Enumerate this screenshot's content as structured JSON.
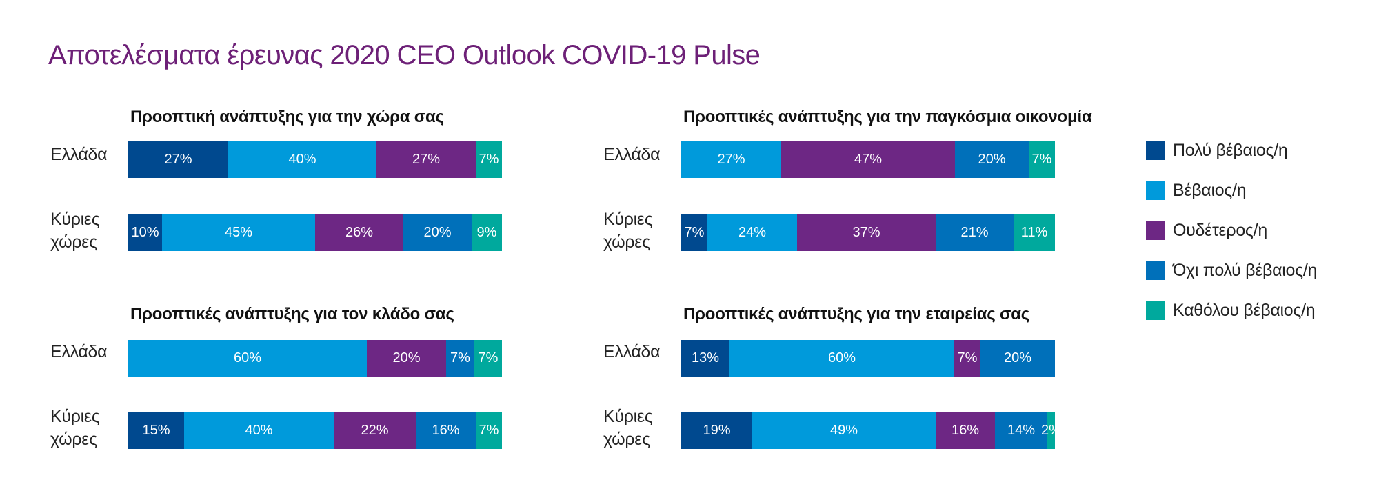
{
  "title": "Αποτελέσματα έρευνας 2020 CEO Outlook COVID-19 Pulse",
  "colors": {
    "very_confident": "#00498F",
    "confident": "#009ADB",
    "neutral": "#6D2784",
    "not_very_confident": "#0070BA",
    "not_at_all_confident": "#00A99D"
  },
  "legend": [
    {
      "key": "very_confident",
      "label": "Πολύ βέβαιος/η"
    },
    {
      "key": "confident",
      "label": "Βέβαιος/η"
    },
    {
      "key": "neutral",
      "label": "Ουδέτερος/η"
    },
    {
      "key": "not_very_confident",
      "label": "Όχι πολύ βέβαιος/η"
    },
    {
      "key": "not_at_all_confident",
      "label": "Καθόλου βέβαιος/η"
    }
  ],
  "chart_data": [
    {
      "type": "bar",
      "orientation": "horizontal-stacked",
      "title": "Προοπτική ανάπτυξης για την χώρα σας",
      "categories": [
        "Ελλάδα",
        "Κύριες\nχώρες"
      ],
      "unit": "%",
      "series": [
        {
          "name": "Πολύ βέβαιος/η",
          "key": "very_confident",
          "values": [
            27,
            10
          ]
        },
        {
          "name": "Βέβαιος/η",
          "key": "confident",
          "values": [
            40,
            45
          ]
        },
        {
          "name": "Ουδέτερος/η",
          "key": "neutral",
          "values": [
            27,
            26
          ]
        },
        {
          "name": "Όχι πολύ βέβαιος/η",
          "key": "not_very_confident",
          "values": [
            0,
            20
          ]
        },
        {
          "name": "Καθόλου βέβαιος/η",
          "key": "not_at_all_confident",
          "values": [
            7,
            9
          ]
        }
      ],
      "legend": "right"
    },
    {
      "type": "bar",
      "orientation": "horizontal-stacked",
      "title": "Προοπτικές ανάπτυξης για την παγκόσμια οικονομία",
      "categories": [
        "Ελλάδα",
        "Κύριες\nχώρες"
      ],
      "unit": "%",
      "series": [
        {
          "name": "Πολύ βέβαιος/η",
          "key": "very_confident",
          "values": [
            0,
            7
          ]
        },
        {
          "name": "Βέβαιος/η",
          "key": "confident",
          "values": [
            27,
            24
          ]
        },
        {
          "name": "Ουδέτερος/η",
          "key": "neutral",
          "values": [
            47,
            37
          ]
        },
        {
          "name": "Όχι πολύ βέβαιος/η",
          "key": "not_very_confident",
          "values": [
            20,
            21
          ]
        },
        {
          "name": "Καθόλου βέβαιος/η",
          "key": "not_at_all_confident",
          "values": [
            7,
            11
          ]
        }
      ],
      "legend": "right"
    },
    {
      "type": "bar",
      "orientation": "horizontal-stacked",
      "title": "Προοπτικές ανάπτυξης για τον κλάδο σας",
      "categories": [
        "Ελλάδα",
        "Κύριες\nχώρες"
      ],
      "unit": "%",
      "series": [
        {
          "name": "Πολύ βέβαιος/η",
          "key": "very_confident",
          "values": [
            0,
            15
          ]
        },
        {
          "name": "Βέβαιος/η",
          "key": "confident",
          "values": [
            60,
            40
          ]
        },
        {
          "name": "Ουδέτερος/η",
          "key": "neutral",
          "values": [
            20,
            22
          ]
        },
        {
          "name": "Όχι πολύ βέβαιος/η",
          "key": "not_very_confident",
          "values": [
            7,
            16
          ]
        },
        {
          "name": "Καθόλου βέβαιος/η",
          "key": "not_at_all_confident",
          "values": [
            7,
            7
          ]
        }
      ],
      "legend": "right"
    },
    {
      "type": "bar",
      "orientation": "horizontal-stacked",
      "title": "Προοπτικές ανάπτυξης για την εταιρείας σας",
      "categories": [
        "Ελλάδα",
        "Κύριες\nχώρες"
      ],
      "unit": "%",
      "series": [
        {
          "name": "Πολύ βέβαιος/η",
          "key": "very_confident",
          "values": [
            13,
            19
          ]
        },
        {
          "name": "Βέβαιος/η",
          "key": "confident",
          "values": [
            60,
            49
          ]
        },
        {
          "name": "Ουδέτερος/η",
          "key": "neutral",
          "values": [
            7,
            16
          ]
        },
        {
          "name": "Όχι πολύ βέβαιος/η",
          "key": "not_very_confident",
          "values": [
            20,
            14
          ]
        },
        {
          "name": "Καθόλου βέβαιος/η",
          "key": "not_at_all_confident",
          "values": [
            0,
            2
          ]
        }
      ],
      "legend": "right"
    }
  ]
}
